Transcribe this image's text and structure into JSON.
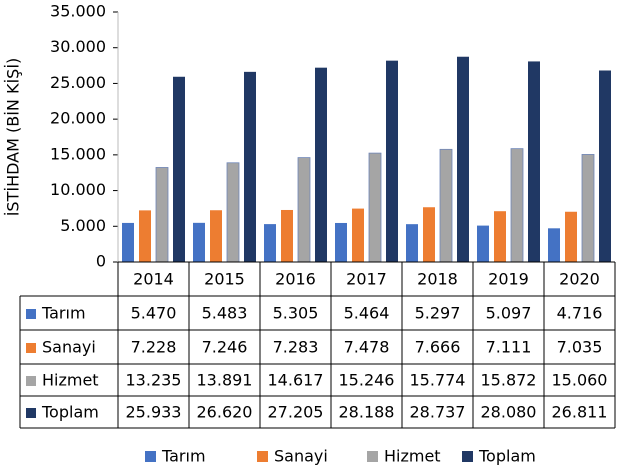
{
  "chart_data": {
    "type": "bar",
    "y_axis_label": "İSTİHDAM (BİN KİŞİ)",
    "categories": [
      "2014",
      "2015",
      "2016",
      "2017",
      "2018",
      "2019",
      "2020"
    ],
    "series": [
      {
        "name": "Tarım",
        "color": "#4472c4",
        "values": [
          5470,
          5483,
          5305,
          5464,
          5297,
          5097,
          4716
        ],
        "value_labels": [
          "5.470",
          "5.483",
          "5.305",
          "5.464",
          "5.297",
          "5.097",
          "4.716"
        ]
      },
      {
        "name": "Sanayi",
        "color": "#ed7d31",
        "values": [
          7228,
          7246,
          7283,
          7478,
          7666,
          7111,
          7035
        ],
        "value_labels": [
          "7.228",
          "7.246",
          "7.283",
          "7.478",
          "7.666",
          "7.111",
          "7.035"
        ]
      },
      {
        "name": "Hizmet",
        "color": "#a5a5a5",
        "values": [
          13235,
          13891,
          14617,
          15246,
          15774,
          15872,
          15060
        ],
        "value_labels": [
          "13.235",
          "13.891",
          "14.617",
          "15.246",
          "15.774",
          "15.872",
          "15.060"
        ]
      },
      {
        "name": "Toplam",
        "color": "#203864",
        "values": [
          25933,
          26620,
          27205,
          28188,
          28737,
          28080,
          26811
        ],
        "value_labels": [
          "25.933",
          "26.620",
          "27.205",
          "28.188",
          "28.737",
          "28.080",
          "26.811"
        ]
      }
    ],
    "ylim": [
      0,
      35000
    ],
    "yticks": [
      0,
      {
        "value": 5000,
        "label": "5.000"
      },
      {
        "value": 10000,
        "label": "10.000"
      },
      {
        "value": 15000,
        "label": "15.000"
      },
      {
        "value": 20000,
        "label": "20.000"
      },
      {
        "value": 25000,
        "label": "25.000"
      },
      {
        "value": 30000,
        "label": "30.000"
      },
      {
        "value": 35000,
        "label": "35.000"
      }
    ],
    "legend": "bottom"
  }
}
